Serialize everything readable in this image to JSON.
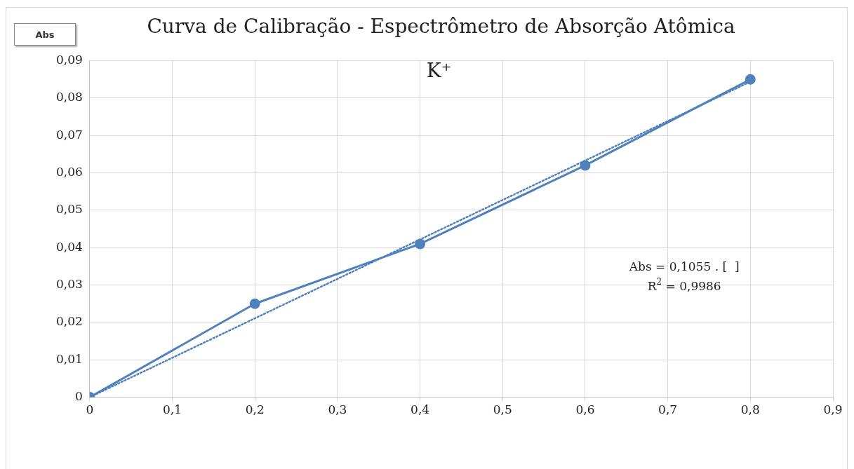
{
  "chart_data": {
    "type": "line",
    "title": "Curva de Calibração - Espectrômetro de Absorção Atômica",
    "subtitle": "K⁺",
    "ylabel": "Abs",
    "annotations": [
      "Abs = 0,1055 . [  ]",
      "R$^{2}$ = 0,9986"
    ],
    "series": [
      {
        "color": "#4f81bd",
        "x": [
          0,
          0.2,
          0.4,
          0.6,
          0.8
        ],
        "values": [
          0,
          0.025,
          0.041,
          0.062,
          0.085
        ],
        "marker": "circle",
        "line_style": "solid"
      },
      {
        "color": "#4f81bd",
        "x": [
          0,
          0.8
        ],
        "values": [
          0,
          0.0844
        ],
        "marker": "none",
        "line_style": "dotted"
      }
    ],
    "xlim": [
      0,
      0.9
    ],
    "ylim": [
      0,
      0.09
    ],
    "xticks": [
      0,
      {
        "value": 0.1,
        "label": "0,1"
      },
      {
        "value": 0.2,
        "label": "0,2"
      },
      {
        "value": 0.3,
        "label": "0,3"
      },
      {
        "value": 0.4,
        "label": "0,4"
      },
      {
        "value": 0.5,
        "label": "0,5"
      },
      {
        "value": 0.6,
        "label": "0,6"
      },
      {
        "value": 0.7,
        "label": "0,7"
      },
      {
        "value": 0.8,
        "label": "0,8"
      },
      {
        "value": 0.9,
        "label": "0,9"
      }
    ],
    "yticks": [
      0,
      {
        "value": 0.01,
        "label": "0,01"
      },
      {
        "value": 0.02,
        "label": "0,02"
      },
      {
        "value": 0.03,
        "label": "0,03"
      },
      {
        "value": 0.04,
        "label": "0,04"
      },
      {
        "value": 0.05,
        "label": "0,05"
      },
      {
        "value": 0.06,
        "label": "0,06"
      },
      {
        "value": 0.07,
        "label": "0,07"
      },
      {
        "value": 0.08,
        "label": "0,08"
      },
      {
        "value": 0.09,
        "label": "0,09"
      }
    ],
    "grid": true
  }
}
